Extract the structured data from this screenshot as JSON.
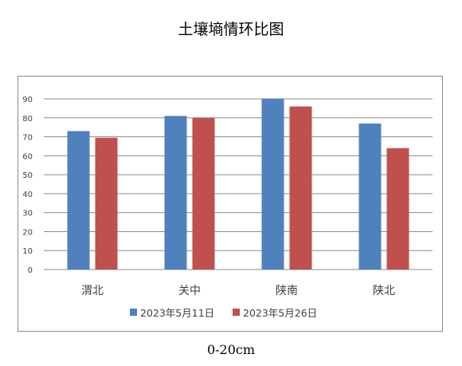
{
  "chart_data": {
    "type": "bar",
    "title": "土壤墒情环比图",
    "caption": "0-20cm",
    "categories": [
      "渭北",
      "关中",
      "陕南",
      "陕北"
    ],
    "series": [
      {
        "name": "2023年5月11日",
        "color": "#4f81bd",
        "values": [
          73,
          81,
          90,
          77
        ]
      },
      {
        "name": "2023年5月26日",
        "color": "#c0504d",
        "values": [
          69.5,
          80,
          86,
          64
        ]
      }
    ],
    "ylim": [
      0,
      90
    ],
    "yticks": [
      0,
      10,
      20,
      30,
      40,
      50,
      60,
      70,
      80,
      90
    ],
    "grid": true,
    "legend_position": "bottom"
  }
}
